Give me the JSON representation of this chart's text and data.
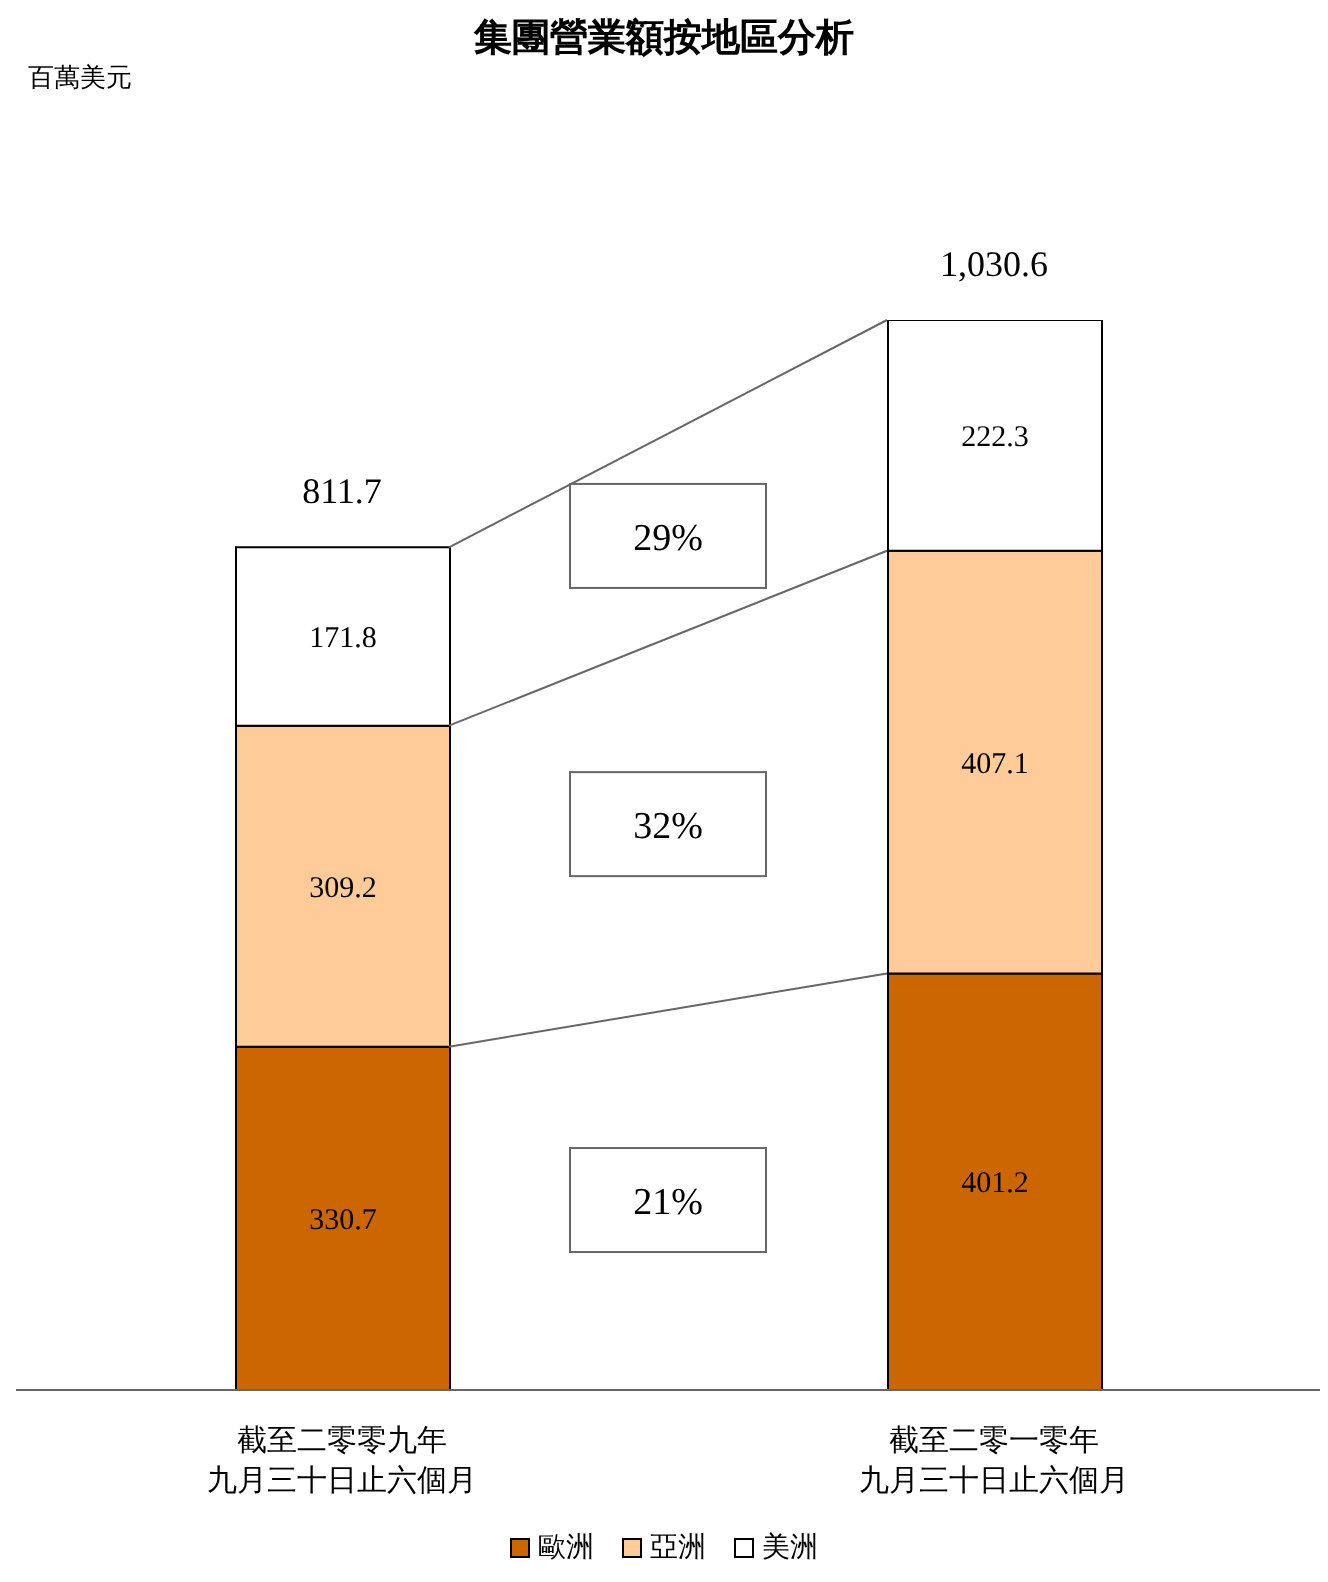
{
  "chart_data": {
    "type": "bar",
    "title": "集團營業額按地區分析",
    "categories": [
      "截至二零零九年九月三十日止六個月",
      "截至二零一零年九月三十日止六個月"
    ],
    "stacked": true,
    "data_labels": true,
    "legend": "bottom",
    "series": [
      {
        "name": "歐洲",
        "color": "#cc6600",
        "values": [
          330.7,
          401.2
        ]
      },
      {
        "name": "亞洲",
        "color": "#ffcc99",
        "values": [
          309.2,
          407.1
        ]
      },
      {
        "name": "美洲",
        "color": "#ffffff",
        "values": [
          171.8,
          222.3
        ]
      }
    ],
    "totals": [
      "811.7",
      "1,030.6"
    ],
    "annotations": [
      "百萬美元",
      "21%",
      "32%",
      "29%"
    ]
  }
}
